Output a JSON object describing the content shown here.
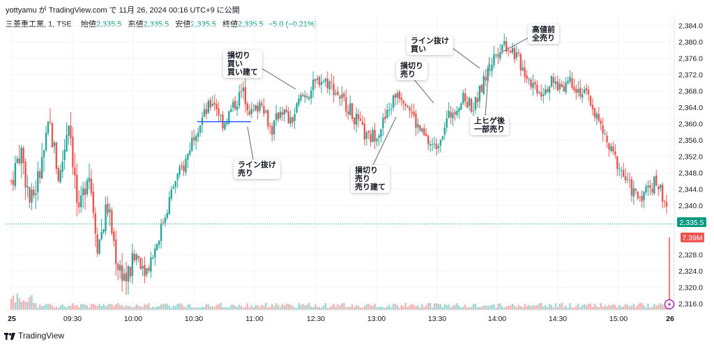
{
  "header": {
    "line": "yottyamu が TradingView.com で 11月 26, 2024 00:16 UTC+9 に公開"
  },
  "legend": {
    "symbol": "三菱重工業, 1, TSE",
    "open_label": "始値",
    "open": "2,335.5",
    "high_label": "高値",
    "high": "2,335.5",
    "low_label": "安値",
    "low": "2,335.5",
    "close_label": "終値",
    "close": "2,335.5",
    "change": "−5.0 (−0.21%)"
  },
  "price_tag": "2,335.5",
  "volume_tag": "7.39M",
  "footer": {
    "brand": "TradingView"
  },
  "annotations": [
    {
      "lines": [
        "損切り",
        "買い",
        "買い建て"
      ]
    },
    {
      "lines": [
        "ライン抜け",
        "売り"
      ]
    },
    {
      "lines": [
        "損切り",
        "売り",
        "売り建て"
      ]
    },
    {
      "lines": [
        "損切り",
        "売り"
      ]
    },
    {
      "lines": [
        "ライン抜け",
        "買い"
      ]
    },
    {
      "lines": [
        "高値前",
        "全売り"
      ]
    },
    {
      "lines": [
        "上ヒゲ後",
        "一部売り"
      ]
    }
  ],
  "colors": {
    "up": "#26a69a",
    "down": "#ef5350",
    "line": "#2962ff",
    "last": "#089981"
  },
  "chart_data": {
    "type": "candlestick",
    "x_ticks": [
      "25",
      "09:30",
      "10:00",
      "10:30",
      "11:00",
      "12:30",
      "13:00",
      "13:30",
      "14:00",
      "14:30",
      "15:00",
      "26"
    ],
    "y_ticks": [
      "2,384.0",
      "2,380.0",
      "2,376.0",
      "2,372.0",
      "2,368.0",
      "2,364.0",
      "2,360.0",
      "2,356.0",
      "2,352.0",
      "2,348.0",
      "2,344.0",
      "2,340.0",
      "2,328.0",
      "2,324.0",
      "2,320.0",
      "2,316.0"
    ],
    "ylim": [
      2314.5,
      2386.5
    ],
    "last_price": 2335.5,
    "horizontal_line": 2360.5,
    "close_path": [
      2346,
      2354,
      2340,
      2348,
      2360,
      2346,
      2362,
      2336,
      2350,
      2330,
      2340,
      2326,
      2322,
      2328,
      2324,
      2330,
      2338,
      2346,
      2350,
      2358,
      2362,
      2366,
      2360,
      2364,
      2368,
      2362,
      2366,
      2358,
      2364,
      2360,
      2366,
      2368,
      2371,
      2370,
      2367,
      2364,
      2360,
      2356,
      2358,
      2362,
      2368,
      2366,
      2360,
      2356,
      2354,
      2360,
      2364,
      2366,
      2364,
      2370,
      2376,
      2380,
      2378,
      2374,
      2370,
      2368,
      2370,
      2369,
      2371,
      2368,
      2366,
      2360,
      2354,
      2350,
      2345,
      2342,
      2344,
      2346,
      2340
    ]
  }
}
